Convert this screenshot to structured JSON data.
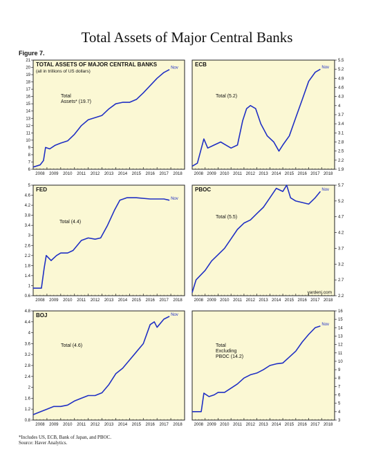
{
  "page": {
    "title": "Total Assets of Major Central Banks",
    "figure_label": "Figure 7.",
    "footnote_1": "*Includes US, ECB, Bank of Japan, and PBOC.",
    "footnote_2": "Source: Haver Analytics.",
    "watermark": "yardeni.com"
  },
  "colors": {
    "line": "#1f2fc4",
    "panel_bg": "#fbf8d4",
    "axis": "#222222",
    "text": "#111111"
  },
  "chart_data": [
    {
      "type": "line",
      "panel_title": "TOTAL ASSETS OF MAJOR CENTRAL BANKS",
      "panel_subtitle": "(all in trillions of US dollars)",
      "annotation": [
        "Total",
        "Assets* (19.7)"
      ],
      "end_label": "Nov",
      "y_axis_side": "left",
      "ylim": [
        6,
        21
      ],
      "yticks": [
        6,
        7,
        8,
        9,
        10,
        11,
        12,
        13,
        14,
        15,
        16,
        17,
        18,
        19,
        20,
        21
      ],
      "xticks": [
        "2008",
        "2009",
        "2010",
        "2011",
        "2012",
        "2013",
        "2014",
        "2015",
        "2016",
        "2017",
        "2018"
      ],
      "xlim": [
        2008,
        2019
      ],
      "x": [
        2008.0,
        2008.5,
        2008.75,
        2008.9,
        2009.2,
        2009.6,
        2010.0,
        2010.5,
        2011.0,
        2011.5,
        2012.0,
        2012.5,
        2013.0,
        2013.5,
        2014.0,
        2014.5,
        2015.0,
        2015.5,
        2016.0,
        2016.5,
        2017.0,
        2017.5,
        2017.9
      ],
      "y": [
        6.3,
        6.6,
        7.2,
        9.0,
        8.8,
        9.3,
        9.6,
        9.9,
        10.8,
        12.0,
        12.8,
        13.1,
        13.4,
        14.3,
        15.0,
        15.2,
        15.2,
        15.6,
        16.5,
        17.5,
        18.5,
        19.3,
        19.7
      ]
    },
    {
      "type": "line",
      "panel_title": "ECB",
      "annotation": [
        "Total (5.2)"
      ],
      "end_label": "Nov",
      "y_axis_side": "right",
      "ylim": [
        1.9,
        5.5
      ],
      "yticks": [
        1.9,
        2.2,
        2.5,
        2.8,
        3.1,
        3.4,
        3.7,
        4.0,
        4.3,
        4.6,
        4.9,
        5.2,
        5.5
      ],
      "xticks": [
        "2008",
        "2009",
        "2010",
        "2011",
        "2012",
        "2013",
        "2014",
        "2015",
        "2016",
        "2017",
        "2018"
      ],
      "xlim": [
        2008,
        2019
      ],
      "x": [
        2008.0,
        2008.4,
        2008.9,
        2009.2,
        2009.7,
        2010.2,
        2010.6,
        2011.0,
        2011.5,
        2011.9,
        2012.2,
        2012.5,
        2012.9,
        2013.3,
        2013.8,
        2014.3,
        2014.7,
        2015.0,
        2015.5,
        2016.0,
        2016.5,
        2017.0,
        2017.5,
        2017.9
      ],
      "y": [
        2.0,
        2.1,
        2.9,
        2.6,
        2.7,
        2.8,
        2.7,
        2.6,
        2.7,
        3.5,
        3.9,
        4.0,
        3.9,
        3.4,
        3.0,
        2.8,
        2.5,
        2.7,
        3.0,
        3.6,
        4.2,
        4.8,
        5.1,
        5.2
      ]
    },
    {
      "type": "line",
      "panel_title": "FED",
      "annotation": [
        "Total (4.4)"
      ],
      "end_label": "Nov",
      "y_axis_side": "left",
      "ylim": [
        0.6,
        5.0
      ],
      "yticks": [
        0.6,
        1.0,
        1.4,
        1.8,
        2.2,
        2.6,
        3.0,
        3.4,
        3.8,
        4.2,
        4.6,
        5.0
      ],
      "xticks": [
        "2008",
        "2009",
        "2010",
        "2011",
        "2012",
        "2013",
        "2014",
        "2015",
        "2016",
        "2017",
        "2018"
      ],
      "xlim": [
        2008,
        2019
      ],
      "x": [
        2008.0,
        2008.6,
        2008.8,
        2008.95,
        2009.3,
        2009.7,
        2010.0,
        2010.5,
        2010.9,
        2011.5,
        2012.0,
        2012.5,
        2012.9,
        2013.4,
        2013.9,
        2014.3,
        2014.8,
        2015.5,
        2016.5,
        2017.5,
        2017.9
      ],
      "y": [
        0.9,
        0.9,
        1.7,
        2.2,
        2.0,
        2.2,
        2.3,
        2.3,
        2.4,
        2.8,
        2.9,
        2.85,
        2.9,
        3.4,
        4.0,
        4.4,
        4.5,
        4.5,
        4.45,
        4.45,
        4.4
      ]
    },
    {
      "type": "line",
      "panel_title": "PBOC",
      "annotation": [
        "Total (5.5)"
      ],
      "end_label": "Nov",
      "y_axis_side": "right",
      "ylim": [
        2.2,
        5.7
      ],
      "yticks": [
        2.2,
        2.7,
        3.2,
        3.7,
        4.2,
        4.7,
        5.2,
        5.7
      ],
      "xticks": [
        "2008",
        "2009",
        "2010",
        "2011",
        "2012",
        "2013",
        "2014",
        "2015",
        "2016",
        "2017",
        "2018"
      ],
      "xlim": [
        2008,
        2019
      ],
      "x": [
        2008.0,
        2008.3,
        2009.0,
        2009.5,
        2010.0,
        2010.5,
        2011.0,
        2011.5,
        2012.0,
        2012.5,
        2013.0,
        2013.5,
        2014.0,
        2014.5,
        2015.0,
        2015.3,
        2015.6,
        2016.0,
        2016.5,
        2017.0,
        2017.5,
        2017.9
      ],
      "y": [
        2.3,
        2.7,
        3.0,
        3.3,
        3.5,
        3.7,
        4.0,
        4.3,
        4.5,
        4.6,
        4.8,
        5.0,
        5.3,
        5.6,
        5.5,
        5.7,
        5.3,
        5.2,
        5.15,
        5.1,
        5.3,
        5.5
      ]
    },
    {
      "type": "line",
      "panel_title": "BOJ",
      "annotation": [
        "Total (4.6)"
      ],
      "end_label": "Nov",
      "y_axis_side": "left",
      "ylim": [
        0.8,
        4.8
      ],
      "yticks": [
        0.8,
        1.2,
        1.6,
        2.0,
        2.4,
        2.8,
        3.2,
        3.6,
        4.0,
        4.4,
        4.8
      ],
      "xticks": [
        "2008",
        "2009",
        "2010",
        "2011",
        "2012",
        "2013",
        "2014",
        "2015",
        "2016",
        "2017",
        "2018"
      ],
      "xlim": [
        2008,
        2019
      ],
      "x": [
        2008.0,
        2008.5,
        2009.0,
        2009.5,
        2010.0,
        2010.5,
        2011.0,
        2011.5,
        2012.0,
        2012.5,
        2013.0,
        2013.5,
        2014.0,
        2014.5,
        2015.0,
        2015.5,
        2016.0,
        2016.5,
        2016.8,
        2017.0,
        2017.5,
        2017.9
      ],
      "y": [
        1.0,
        1.1,
        1.2,
        1.3,
        1.3,
        1.35,
        1.5,
        1.6,
        1.7,
        1.7,
        1.8,
        2.1,
        2.5,
        2.7,
        3.0,
        3.3,
        3.6,
        4.3,
        4.4,
        4.2,
        4.5,
        4.6
      ]
    },
    {
      "type": "line",
      "panel_title": "",
      "annotation": [
        "Total",
        "Excluding",
        "PBOC (14.2)"
      ],
      "end_label": "Nov",
      "y_axis_side": "right",
      "ylim": [
        3,
        16
      ],
      "yticks": [
        3,
        4,
        5,
        6,
        7,
        8,
        9,
        10,
        11,
        12,
        13,
        14,
        15,
        16
      ],
      "xticks": [
        "2008",
        "2009",
        "2010",
        "2011",
        "2012",
        "2013",
        "2014",
        "2015",
        "2016",
        "2017",
        "2018"
      ],
      "xlim": [
        2008,
        2019
      ],
      "x": [
        2008.0,
        2008.7,
        2008.9,
        2009.3,
        2009.7,
        2010.0,
        2010.5,
        2011.0,
        2011.5,
        2012.0,
        2012.5,
        2013.0,
        2013.5,
        2014.0,
        2014.5,
        2015.0,
        2015.5,
        2016.0,
        2016.5,
        2017.0,
        2017.5,
        2017.9
      ],
      "y": [
        4.0,
        4.0,
        6.2,
        5.8,
        6.0,
        6.3,
        6.3,
        6.8,
        7.3,
        8.0,
        8.4,
        8.6,
        9.0,
        9.5,
        9.7,
        9.8,
        10.5,
        11.2,
        12.3,
        13.2,
        14.0,
        14.2
      ]
    }
  ]
}
